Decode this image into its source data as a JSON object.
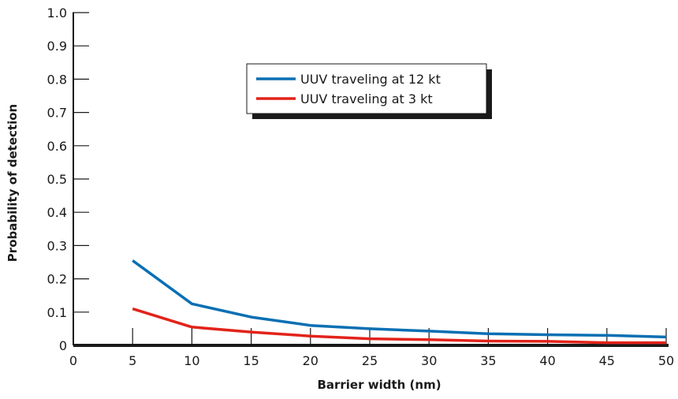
{
  "chart_data": {
    "type": "line",
    "title": "",
    "xlabel": "Barrier width (nm)",
    "ylabel": "Probability of detection",
    "xlim": [
      0,
      50
    ],
    "ylim": [
      0,
      1.0
    ],
    "x_ticks": [
      "0",
      "5",
      "10",
      "15",
      "20",
      "25",
      "30",
      "35",
      "40",
      "45",
      "50"
    ],
    "y_ticks": [
      "0",
      "0.1",
      "0.2",
      "0.3",
      "0.4",
      "0.5",
      "0.6",
      "0.7",
      "0.8",
      "0.9",
      "1.0"
    ],
    "grid": false,
    "legend_position": "top-center",
    "series": [
      {
        "name": "UUV traveling at 12 kt",
        "color": "#0a6fb3",
        "x": [
          5,
          10,
          15,
          20,
          25,
          30,
          35,
          40,
          45,
          50
        ],
        "y": [
          0.255,
          0.125,
          0.085,
          0.06,
          0.05,
          0.043,
          0.035,
          0.032,
          0.03,
          0.025
        ]
      },
      {
        "name": "UUV traveling at 3 kt",
        "color": "#e2231a",
        "x": [
          5,
          10,
          15,
          20,
          25,
          30,
          35,
          40,
          45,
          50
        ],
        "y": [
          0.11,
          0.055,
          0.04,
          0.028,
          0.02,
          0.017,
          0.013,
          0.012,
          0.008,
          0.008
        ]
      }
    ]
  }
}
